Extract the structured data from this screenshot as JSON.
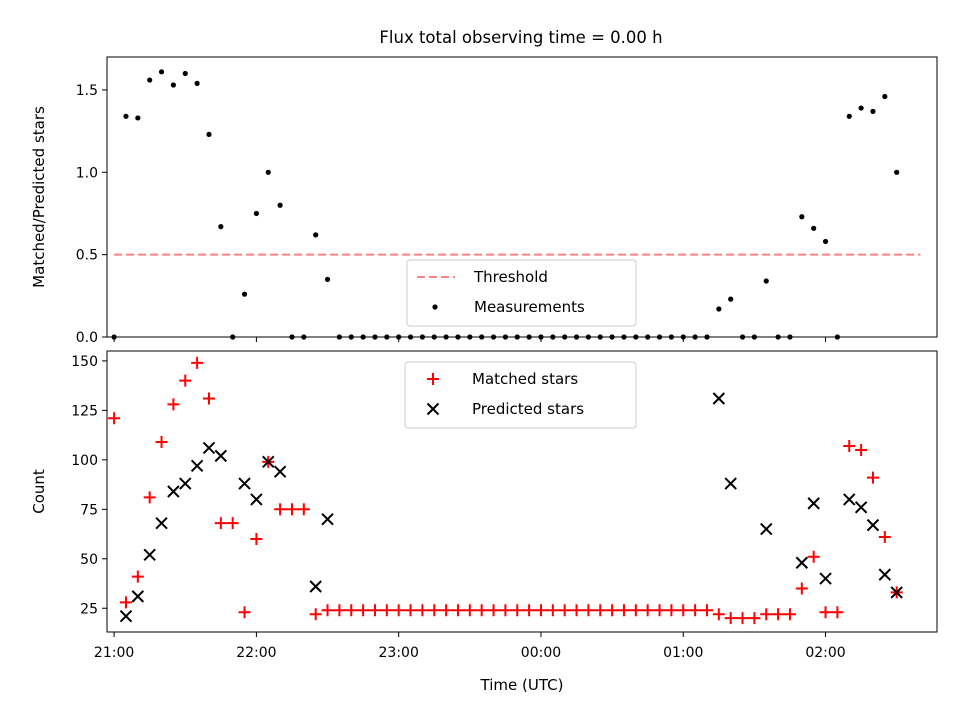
{
  "title": "Flux total observing time = 0.00 h",
  "colors": {
    "threshold": "#ff8080",
    "measurements": "#000000",
    "matched": "#ff0000",
    "predicted": "#000000"
  },
  "chart_data": [
    {
      "type": "scatter",
      "ylabel": "Matched/Predicted stars",
      "xlim": [
        "20:57",
        "02:47"
      ],
      "ylim": [
        0,
        1.7
      ],
      "yticks": [
        0.0,
        0.5,
        1.0,
        1.5
      ],
      "ytick_labels": [
        "0.0",
        "0.5",
        "1.0",
        "1.5"
      ],
      "xticks": [
        "21:00",
        "22:00",
        "23:00",
        "00:00",
        "01:00",
        "02:00"
      ],
      "legend": {
        "position": "bottom-center",
        "labels": [
          "Threshold",
          "Measurements"
        ]
      },
      "threshold": {
        "name": "Threshold",
        "value": 0.5,
        "x_range": [
          "21:00",
          "02:40"
        ]
      },
      "series": [
        {
          "name": "Measurements",
          "marker": "dot",
          "points": [
            [
              "21:00",
              0
            ],
            [
              "21:05",
              1.34
            ],
            [
              "21:10",
              1.33
            ],
            [
              "21:15",
              1.56
            ],
            [
              "21:20",
              1.61
            ],
            [
              "21:25",
              1.53
            ],
            [
              "21:30",
              1.6
            ],
            [
              "21:35",
              1.54
            ],
            [
              "21:40",
              1.23
            ],
            [
              "21:45",
              0.67
            ],
            [
              "21:50",
              0
            ],
            [
              "21:55",
              0.26
            ],
            [
              "22:00",
              0.75
            ],
            [
              "22:05",
              1.0
            ],
            [
              "22:10",
              0.8
            ],
            [
              "22:15",
              0
            ],
            [
              "22:20",
              0
            ],
            [
              "22:25",
              0.62
            ],
            [
              "22:30",
              0.35
            ],
            [
              "22:35",
              0
            ],
            [
              "22:40",
              0
            ],
            [
              "22:45",
              0
            ],
            [
              "22:50",
              0
            ],
            [
              "22:55",
              0
            ],
            [
              "23:00",
              0
            ],
            [
              "23:05",
              0
            ],
            [
              "23:10",
              0
            ],
            [
              "23:15",
              0
            ],
            [
              "23:20",
              0
            ],
            [
              "23:25",
              0
            ],
            [
              "23:30",
              0
            ],
            [
              "23:35",
              0
            ],
            [
              "23:40",
              0
            ],
            [
              "23:45",
              0
            ],
            [
              "23:50",
              0
            ],
            [
              "23:55",
              0
            ],
            [
              "00:00",
              0
            ],
            [
              "00:05",
              0
            ],
            [
              "00:10",
              0
            ],
            [
              "00:15",
              0
            ],
            [
              "00:20",
              0
            ],
            [
              "00:25",
              0
            ],
            [
              "00:30",
              0
            ],
            [
              "00:35",
              0
            ],
            [
              "00:40",
              0
            ],
            [
              "00:45",
              0
            ],
            [
              "00:50",
              0
            ],
            [
              "00:55",
              0
            ],
            [
              "01:00",
              0
            ],
            [
              "01:05",
              0
            ],
            [
              "01:10",
              0
            ],
            [
              "01:15",
              0.17
            ],
            [
              "01:20",
              0.23
            ],
            [
              "01:25",
              0
            ],
            [
              "01:30",
              0
            ],
            [
              "01:35",
              0.34
            ],
            [
              "01:40",
              0
            ],
            [
              "01:45",
              0
            ],
            [
              "01:50",
              0.73
            ],
            [
              "01:55",
              0.66
            ],
            [
              "02:00",
              0.58
            ],
            [
              "02:05",
              0
            ],
            [
              "02:10",
              1.34
            ],
            [
              "02:15",
              1.39
            ],
            [
              "02:20",
              1.37
            ],
            [
              "02:25",
              1.46
            ],
            [
              "02:30",
              1.0
            ]
          ]
        }
      ]
    },
    {
      "type": "scatter",
      "xlabel": "Time (UTC)",
      "ylabel": "Count",
      "xlim": [
        "20:57",
        "02:47"
      ],
      "ylim": [
        13,
        155
      ],
      "yticks": [
        25,
        50,
        75,
        100,
        125,
        150
      ],
      "xticks": [
        "21:00",
        "22:00",
        "23:00",
        "00:00",
        "01:00",
        "02:00"
      ],
      "legend": {
        "position": "top-center",
        "labels": [
          "Matched stars",
          "Predicted stars"
        ]
      },
      "series": [
        {
          "name": "Matched stars",
          "marker": "plus",
          "points": [
            [
              "21:00",
              121
            ],
            [
              "21:05",
              28
            ],
            [
              "21:10",
              41
            ],
            [
              "21:15",
              81
            ],
            [
              "21:20",
              109
            ],
            [
              "21:25",
              128
            ],
            [
              "21:30",
              140
            ],
            [
              "21:35",
              149
            ],
            [
              "21:40",
              131
            ],
            [
              "21:45",
              68
            ],
            [
              "21:50",
              68
            ],
            [
              "21:55",
              23
            ],
            [
              "22:00",
              60
            ],
            [
              "22:05",
              99
            ],
            [
              "22:10",
              75
            ],
            [
              "22:15",
              75
            ],
            [
              "22:20",
              75
            ],
            [
              "22:25",
              22
            ],
            [
              "22:30",
              24
            ],
            [
              "22:35",
              24
            ],
            [
              "22:40",
              24
            ],
            [
              "22:45",
              24
            ],
            [
              "22:50",
              24
            ],
            [
              "22:55",
              24
            ],
            [
              "23:00",
              24
            ],
            [
              "23:05",
              24
            ],
            [
              "23:10",
              24
            ],
            [
              "23:15",
              24
            ],
            [
              "23:20",
              24
            ],
            [
              "23:25",
              24
            ],
            [
              "23:30",
              24
            ],
            [
              "23:35",
              24
            ],
            [
              "23:40",
              24
            ],
            [
              "23:45",
              24
            ],
            [
              "23:50",
              24
            ],
            [
              "23:55",
              24
            ],
            [
              "00:00",
              24
            ],
            [
              "00:05",
              24
            ],
            [
              "00:10",
              24
            ],
            [
              "00:15",
              24
            ],
            [
              "00:20",
              24
            ],
            [
              "00:25",
              24
            ],
            [
              "00:30",
              24
            ],
            [
              "00:35",
              24
            ],
            [
              "00:40",
              24
            ],
            [
              "00:45",
              24
            ],
            [
              "00:50",
              24
            ],
            [
              "00:55",
              24
            ],
            [
              "01:00",
              24
            ],
            [
              "01:05",
              24
            ],
            [
              "01:10",
              24
            ],
            [
              "01:15",
              22
            ],
            [
              "01:20",
              20
            ],
            [
              "01:25",
              20
            ],
            [
              "01:30",
              20
            ],
            [
              "01:35",
              22
            ],
            [
              "01:40",
              22
            ],
            [
              "01:45",
              22
            ],
            [
              "01:50",
              35
            ],
            [
              "01:55",
              51
            ],
            [
              "02:00",
              23
            ],
            [
              "02:05",
              23
            ],
            [
              "02:10",
              107
            ],
            [
              "02:15",
              105
            ],
            [
              "02:20",
              91
            ],
            [
              "02:25",
              61
            ],
            [
              "02:30",
              33
            ]
          ]
        },
        {
          "name": "Predicted stars",
          "marker": "x",
          "points": [
            [
              "21:05",
              21
            ],
            [
              "21:10",
              31
            ],
            [
              "21:15",
              52
            ],
            [
              "21:20",
              68
            ],
            [
              "21:25",
              84
            ],
            [
              "21:30",
              88
            ],
            [
              "21:35",
              97
            ],
            [
              "21:40",
              106
            ],
            [
              "21:45",
              102
            ],
            [
              "21:55",
              88
            ],
            [
              "22:00",
              80
            ],
            [
              "22:05",
              99
            ],
            [
              "22:10",
              94
            ],
            [
              "22:25",
              36
            ],
            [
              "22:30",
              70
            ],
            [
              "01:15",
              131
            ],
            [
              "01:20",
              88
            ],
            [
              "01:35",
              65
            ],
            [
              "01:50",
              48
            ],
            [
              "01:55",
              78
            ],
            [
              "02:00",
              40
            ],
            [
              "02:10",
              80
            ],
            [
              "02:15",
              76
            ],
            [
              "02:20",
              67
            ],
            [
              "02:25",
              42
            ],
            [
              "02:30",
              33
            ]
          ]
        }
      ]
    }
  ]
}
